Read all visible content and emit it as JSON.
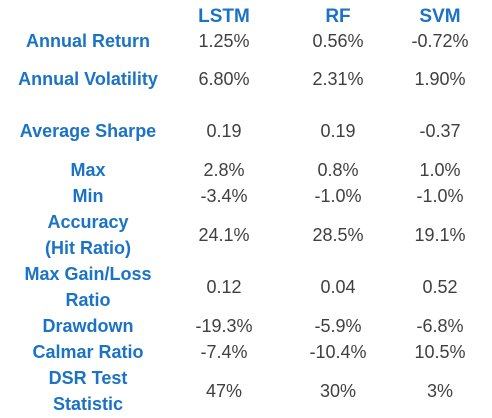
{
  "columns": [
    "LSTM",
    "RF",
    "SVM"
  ],
  "rows": [
    {
      "label": [
        "Annual Return"
      ],
      "values": [
        "1.25%",
        "0.56%",
        "-0.72%"
      ]
    },
    {
      "label": [
        "Annual Volatility"
      ],
      "values": [
        "6.80%",
        "2.31%",
        "1.90%"
      ]
    },
    {
      "label": [
        "Average Sharpe"
      ],
      "values": [
        "0.19",
        "0.19",
        "-0.37"
      ]
    },
    {
      "label": [
        "Max"
      ],
      "values": [
        "2.8%",
        "0.8%",
        "1.0%"
      ]
    },
    {
      "label": [
        "Min"
      ],
      "values": [
        "-3.4%",
        "-1.0%",
        "-1.0%"
      ]
    },
    {
      "label": [
        "Accuracy",
        "(Hit Ratio)"
      ],
      "values": [
        "24.1%",
        "28.5%",
        "19.1%"
      ]
    },
    {
      "label": [
        "Max Gain/Loss",
        "Ratio"
      ],
      "values": [
        "0.12",
        "0.04",
        "0.52"
      ]
    },
    {
      "label": [
        "Drawdown"
      ],
      "values": [
        "-19.3%",
        "-5.9%",
        "-6.8%"
      ]
    },
    {
      "label": [
        "Calmar Ratio"
      ],
      "values": [
        "-7.4%",
        "-10.4%",
        "10.5%"
      ]
    },
    {
      "label": [
        "DSR Test",
        "Statistic"
      ],
      "values": [
        "47%",
        "30%",
        "3%"
      ]
    }
  ],
  "colors": {
    "header_text": "#1b73c6",
    "label_text": "#1b73c6",
    "value_text": "#404040",
    "background": "#ffffff"
  }
}
